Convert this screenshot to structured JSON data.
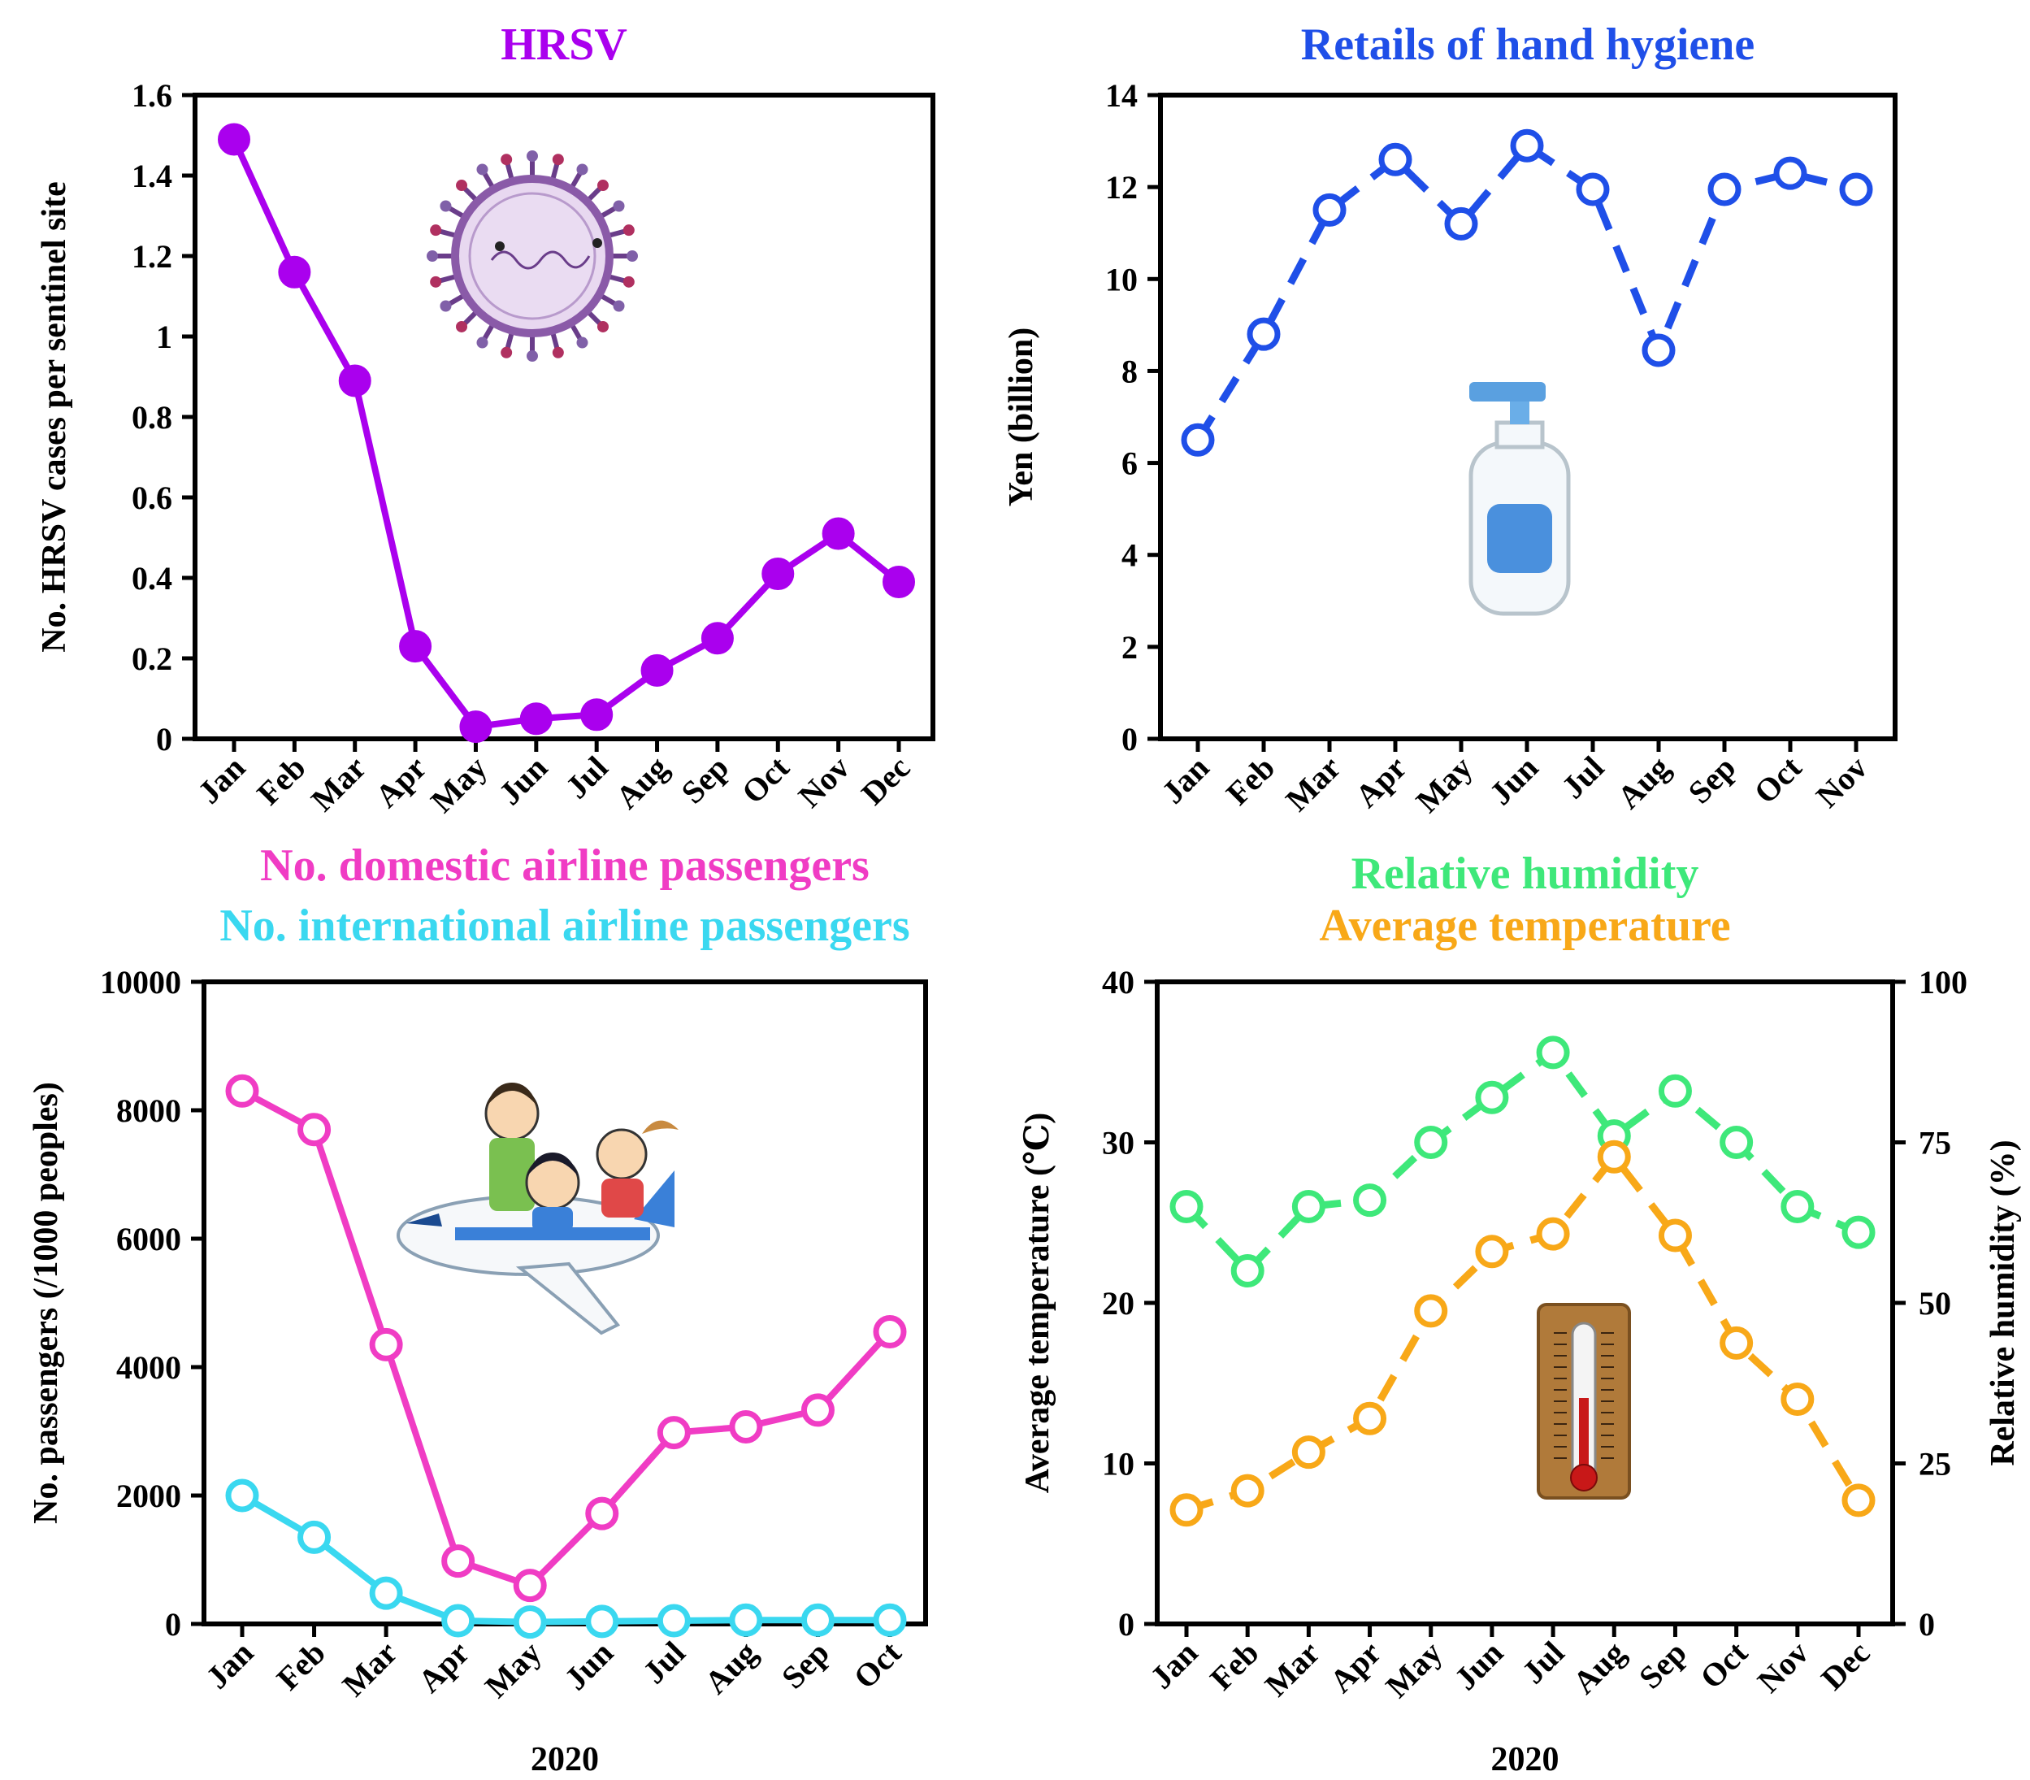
{
  "chart_data": [
    {
      "type": "line",
      "title": "HRSV",
      "title_color": "#aa00ee",
      "xlabel": "",
      "ylabel": "No.  HRSV cases per sentinel site",
      "categories": [
        "Jan",
        "Feb",
        "Mar",
        "Apr",
        "May",
        "Jun",
        "Jul",
        "Aug",
        "Sep",
        "Oct",
        "Nov",
        "Dec"
      ],
      "ylim": [
        0,
        1.6
      ],
      "yticks": [
        "0",
        "0.2",
        "0.4",
        "0.6",
        "0.8",
        "1",
        "1.2",
        "1.4",
        "1.6"
      ],
      "series": [
        {
          "color": "#aa00ee",
          "marker": "filled",
          "dashed": false,
          "values": [
            1.49,
            1.16,
            0.89,
            0.23,
            0.03,
            0.05,
            0.06,
            0.17,
            0.25,
            0.41,
            0.51,
            0.39
          ]
        }
      ],
      "icon": "virus-icon"
    },
    {
      "type": "line",
      "title": "Retails of hand hygiene",
      "title_color": "#1f4fe8",
      "xlabel": "",
      "ylabel": "Yen (billion)",
      "categories": [
        "Jan",
        "Feb",
        "Mar",
        "Apr",
        "May",
        "Jun",
        "Jul",
        "Aug",
        "Sep",
        "Oct",
        "Nov"
      ],
      "ylim": [
        0,
        14
      ],
      "yticks": [
        "0",
        "2",
        "4",
        "6",
        "8",
        "10",
        "12",
        "14"
      ],
      "series": [
        {
          "color": "#1f4fe8",
          "marker": "open",
          "dashed": true,
          "values": [
            6.5,
            8.8,
            11.5,
            12.6,
            11.2,
            12.9,
            11.95,
            8.45,
            11.95,
            12.3,
            11.95
          ]
        }
      ],
      "icon": "soap-bottle-icon"
    },
    {
      "type": "line",
      "title_lines": [
        {
          "text": "No. domestic airline passengers",
          "color": "#f03cc4"
        },
        {
          "text": "No. international airline passengers",
          "color": "#3ad8f0"
        }
      ],
      "xlabel": "2020",
      "ylabel": "No. passengers (/1000 peoples)",
      "categories": [
        "Jan",
        "Feb",
        "Mar",
        "Apr",
        "May",
        "Jun",
        "Jul",
        "Aug",
        "Sep",
        "Oct"
      ],
      "ylim": [
        0,
        10000
      ],
      "yticks": [
        "0",
        "2000",
        "4000",
        "6000",
        "8000",
        "10000"
      ],
      "series": [
        {
          "color": "#f03cc4",
          "marker": "open",
          "dashed": false,
          "values": [
            8300,
            7700,
            4350,
            980,
            600,
            1720,
            2980,
            3070,
            3330,
            4550
          ]
        },
        {
          "color": "#3ad8f0",
          "marker": "open",
          "dashed": false,
          "values": [
            2000,
            1350,
            480,
            50,
            30,
            40,
            50,
            60,
            60,
            60
          ]
        }
      ],
      "icon": "airplane-family-icon"
    },
    {
      "type": "line",
      "title_lines": [
        {
          "text": "Relative humidity",
          "color": "#3ee87a"
        },
        {
          "text": "Average temperature",
          "color": "#f8a818"
        }
      ],
      "xlabel": "2020",
      "ylabel": "Average temperature (℃)",
      "ylabel_right": "Relative humidity  (%)",
      "categories": [
        "Jan",
        "Feb",
        "Mar",
        "Apr",
        "May",
        "Jun",
        "Jul",
        "Aug",
        "Sep",
        "Oct",
        "Nov",
        "Dec"
      ],
      "ylim": [
        0,
        40
      ],
      "ylim_right": [
        0,
        100
      ],
      "yticks": [
        "0",
        "10",
        "20",
        "30",
        "40"
      ],
      "yticks_right": [
        "0",
        "25",
        "50",
        "75",
        "100"
      ],
      "series": [
        {
          "color": "#3ee87a",
          "marker": "open",
          "dashed": true,
          "axis": "right",
          "values": [
            65,
            55,
            65,
            66,
            75,
            82,
            89,
            76,
            83,
            75,
            65,
            61
          ]
        },
        {
          "color": "#f8a818",
          "marker": "open",
          "dashed": true,
          "axis": "left",
          "values": [
            7.1,
            8.3,
            10.7,
            12.8,
            19.5,
            23.2,
            24.3,
            29.1,
            24.2,
            17.5,
            14.0,
            7.7
          ]
        }
      ],
      "icon": "thermometer-icon"
    }
  ]
}
